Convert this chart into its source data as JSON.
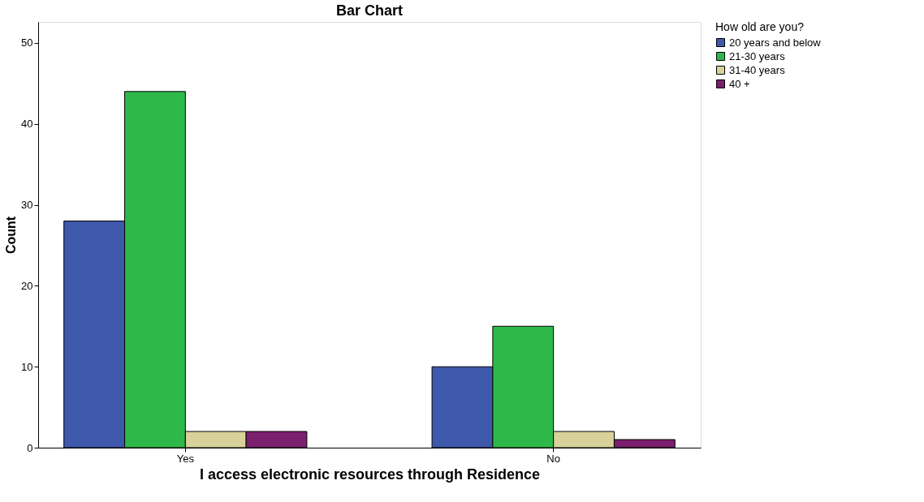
{
  "chart_data": {
    "type": "bar",
    "title": "Bar Chart",
    "xlabel": "I access electronic resources through Residence",
    "ylabel": "Count",
    "legend_title": "How old are you?",
    "categories": [
      "Yes",
      "No"
    ],
    "series": [
      {
        "name": "20 years and below",
        "color": "#3e58ac",
        "values": [
          28,
          10
        ]
      },
      {
        "name": "21-30 years",
        "color": "#2fb84a",
        "values": [
          44,
          15
        ]
      },
      {
        "name": "31-40 years",
        "color": "#d8d29a",
        "values": [
          2,
          2
        ]
      },
      {
        "name": "40 +",
        "color": "#7b1f6e",
        "values": [
          2,
          1
        ]
      }
    ],
    "ylim": [
      0,
      52.6
    ],
    "yticks": [
      0,
      10,
      20,
      30,
      40,
      50
    ],
    "grid": false,
    "legend": "right"
  }
}
